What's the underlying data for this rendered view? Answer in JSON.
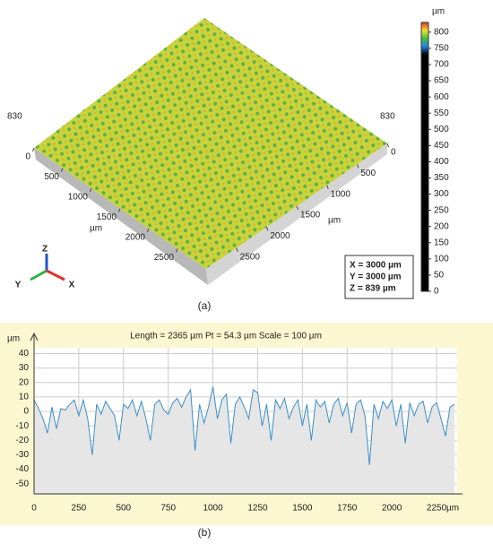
{
  "chart_data": [
    {
      "type": "surface",
      "caption": "(a)",
      "corner_labels": [
        "830",
        "830"
      ],
      "x_ticks": [
        0,
        500,
        1000,
        1500,
        2000,
        2500
      ],
      "y_ticks": [
        0,
        500,
        1000,
        1500,
        2000,
        2500
      ],
      "x_label": "µm",
      "y_label": "µm",
      "extent": 3000,
      "colorbar_unit": "µm",
      "colorbar_lim": [
        0,
        830
      ],
      "colorbar_ticks": [
        0,
        50,
        100,
        150,
        200,
        250,
        300,
        350,
        400,
        450,
        500,
        550,
        600,
        650,
        700,
        750,
        800
      ],
      "info": [
        "X = 3000 µm",
        "Y = 3000 µm",
        "Z = 839 µm"
      ],
      "axes_triad": [
        "Z",
        "Y",
        "X"
      ]
    },
    {
      "type": "line",
      "title": "Length = 2365 µm  Pt = 54.3 µm  Scale = 100 µm",
      "caption": "(b)",
      "y_label": "µm",
      "x_label": "µm",
      "color": "#3a8fc8",
      "grid": true,
      "xlim": [
        0,
        2365
      ],
      "ylim": [
        -57,
        44
      ],
      "xticks": [
        0,
        250,
        500,
        750,
        1000,
        1250,
        1500,
        1750,
        2000,
        2250
      ],
      "yticks": [
        -50,
        -40,
        -30,
        -20,
        -10,
        0,
        10,
        20,
        30,
        40
      ],
      "x": [
        0,
        25,
        50,
        75,
        100,
        125,
        150,
        175,
        200,
        225,
        250,
        275,
        300,
        325,
        350,
        375,
        400,
        425,
        450,
        475,
        500,
        525,
        550,
        575,
        600,
        625,
        650,
        675,
        700,
        725,
        750,
        775,
        800,
        825,
        850,
        875,
        900,
        925,
        950,
        975,
        1000,
        1025,
        1050,
        1075,
        1100,
        1125,
        1150,
        1175,
        1200,
        1225,
        1250,
        1275,
        1300,
        1325,
        1350,
        1375,
        1400,
        1425,
        1450,
        1475,
        1500,
        1525,
        1550,
        1575,
        1600,
        1625,
        1650,
        1675,
        1700,
        1725,
        1750,
        1775,
        1800,
        1825,
        1850,
        1875,
        1900,
        1925,
        1950,
        1975,
        2000,
        2025,
        2050,
        2075,
        2100,
        2125,
        2150,
        2175,
        2200,
        2225,
        2250,
        2275,
        2300,
        2325,
        2350
      ],
      "values": [
        8,
        2,
        -5,
        -15,
        3,
        -12,
        2,
        1,
        5,
        8,
        -3,
        8,
        -5,
        -30,
        5,
        -2,
        7,
        2,
        -3,
        -20,
        5,
        2,
        8,
        -3,
        7,
        -5,
        -20,
        5,
        8,
        1,
        -2,
        6,
        9,
        3,
        10,
        15,
        -27,
        5,
        -8,
        3,
        17,
        -5,
        8,
        12,
        -22,
        5,
        10,
        3,
        -5,
        15,
        13,
        -10,
        5,
        -20,
        8,
        2,
        9,
        -5,
        3,
        8,
        -10,
        5,
        -20,
        8,
        3,
        7,
        -8,
        5,
        9,
        -3,
        6,
        -15,
        5,
        8,
        -3,
        -37,
        5,
        -5,
        7,
        2,
        8,
        -10,
        5,
        -22,
        6,
        -3,
        5,
        7,
        -8,
        3,
        6,
        -5,
        -17,
        3,
        5
      ]
    }
  ]
}
